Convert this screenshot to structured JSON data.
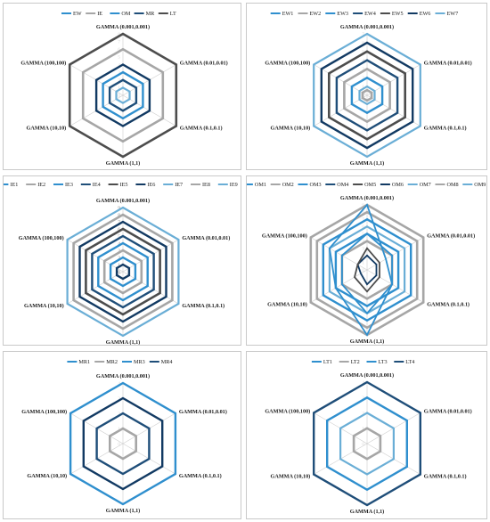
{
  "colors": {
    "blue": "#2f8fce",
    "gray": "#a6a6a6",
    "darkblue": "#1f4e79",
    "navy": "#123a63",
    "charcoal": "#4d4d4d",
    "lightblue": "#6aaed6",
    "axis": "#cfcfcf"
  },
  "chart_data": [
    {
      "id": "ew-group",
      "type": "radar",
      "categories": [
        "GAMMA (0.001,0.001)",
        "GAMMA (0.01,0.01)",
        "GAMMA (0.1,0.1)",
        "GAMMA (1,1)",
        "GAMMA (10,10)",
        "GAMMA (100,100)"
      ],
      "axis_ticks": [
        "8",
        "7",
        "6",
        "5",
        "4",
        "3",
        "2",
        "1",
        "0"
      ],
      "rmax": 8,
      "tick_labels_visible": false,
      "series": [
        {
          "name": "EW",
          "color": "blue",
          "values": [
            1,
            1,
            1,
            1,
            1,
            1
          ]
        },
        {
          "name": "IE",
          "color": "gray",
          "values": [
            6,
            6,
            6,
            6,
            6,
            6
          ]
        },
        {
          "name": "OM",
          "color": "blue",
          "values": [
            3,
            3,
            3,
            3,
            3,
            3
          ]
        },
        {
          "name": "MR",
          "color": "darkblue",
          "values": [
            2,
            2,
            2,
            2,
            2,
            2
          ]
        },
        {
          "name": "LT",
          "color": "charcoal",
          "values": [
            8,
            8,
            8,
            8,
            8,
            8
          ]
        }
      ],
      "rings": [
        {
          "v": 1,
          "color": "lightblue"
        },
        {
          "v": 2,
          "color": "darkblue"
        },
        {
          "v": 3,
          "color": "blue"
        },
        {
          "v": 4,
          "color": "navy"
        },
        {
          "v": 6,
          "color": "gray"
        },
        {
          "v": 8,
          "color": "charcoal"
        }
      ]
    },
    {
      "id": "ew-detail",
      "type": "radar",
      "categories": [
        "GAMMA (0.001,0.001)",
        "GAMMA (0.01,0.01)",
        "GAMMA (0.1,0.1)",
        "GAMMA (1,1)",
        "GAMMA (10,10)",
        "GAMMA (100,100)"
      ],
      "axis_ticks": [
        "7",
        "6",
        "5",
        "4",
        "3",
        "2",
        "1",
        "0"
      ],
      "rmax": 7,
      "tick_labels_visible": false,
      "series": [
        {
          "name": "EW1",
          "color": "blue",
          "values": [
            1,
            1,
            1,
            1,
            1,
            1
          ]
        },
        {
          "name": "EW2",
          "color": "gray",
          "values": [
            2,
            2,
            2,
            2,
            2,
            2
          ]
        },
        {
          "name": "EW3",
          "color": "blue",
          "values": [
            3,
            3,
            3,
            3,
            3,
            3
          ]
        },
        {
          "name": "EW4",
          "color": "darkblue",
          "values": [
            4,
            4,
            4,
            4,
            4,
            4
          ]
        },
        {
          "name": "EW5",
          "color": "charcoal",
          "values": [
            5,
            5,
            5,
            5,
            5,
            5
          ]
        },
        {
          "name": "EW6",
          "color": "navy",
          "values": [
            6,
            6,
            6,
            6,
            6,
            6
          ]
        },
        {
          "name": "EW7",
          "color": "lightblue",
          "values": [
            7,
            7,
            7,
            7,
            7,
            7
          ]
        }
      ],
      "rings": [
        {
          "v": 0.6,
          "color": "gray"
        },
        {
          "v": 1,
          "color": "lightblue"
        },
        {
          "v": 2,
          "color": "blue"
        },
        {
          "v": 3,
          "color": "gray"
        },
        {
          "v": 4,
          "color": "darkblue"
        },
        {
          "v": 5,
          "color": "charcoal"
        },
        {
          "v": 6,
          "color": "navy"
        },
        {
          "v": 7,
          "color": "lightblue"
        }
      ]
    },
    {
      "id": "ie-detail",
      "type": "radar",
      "categories": [
        "GAMMA (0.001,0.001)",
        "GAMMA (0.01,0.01)",
        "GAMMA (0.1,0.1)",
        "GAMMA (1,1)",
        "GAMMA (10,10)",
        "GAMMA (100,100)"
      ],
      "axis_ticks": [
        "9",
        "8",
        "7",
        "6",
        "5",
        "4",
        "3",
        "2",
        "1",
        "0"
      ],
      "rmax": 9,
      "tick_labels_visible": true,
      "series": [
        {
          "name": "IE1",
          "color": "blue",
          "values": [
            1,
            1,
            1,
            1,
            1,
            1
          ]
        },
        {
          "name": "IE2",
          "color": "gray",
          "values": [
            2,
            2,
            2,
            2,
            2,
            2
          ]
        },
        {
          "name": "IE3",
          "color": "blue",
          "values": [
            3,
            3,
            3,
            3,
            3,
            3
          ]
        },
        {
          "name": "IE4",
          "color": "darkblue",
          "values": [
            4,
            4,
            4,
            4,
            4,
            4
          ]
        },
        {
          "name": "IE5",
          "color": "charcoal",
          "values": [
            5,
            5,
            5,
            5,
            5,
            5
          ]
        },
        {
          "name": "IE6",
          "color": "navy",
          "values": [
            6,
            6,
            6,
            6,
            6,
            6
          ]
        },
        {
          "name": "IE7",
          "color": "lightblue",
          "values": [
            7,
            7,
            7,
            7,
            7,
            7
          ]
        },
        {
          "name": "IE8",
          "color": "gray",
          "values": [
            8,
            8,
            8,
            8,
            8,
            8
          ]
        },
        {
          "name": "IE9",
          "color": "lightblue",
          "values": [
            9,
            9,
            9,
            9,
            9,
            9
          ]
        }
      ],
      "rings": [
        {
          "v": 1,
          "color": "navy"
        },
        {
          "v": 2,
          "color": "blue"
        },
        {
          "v": 3,
          "color": "gray"
        },
        {
          "v": 4,
          "color": "blue"
        },
        {
          "v": 5,
          "color": "darkblue"
        },
        {
          "v": 6,
          "color": "charcoal"
        },
        {
          "v": 7,
          "color": "navy"
        },
        {
          "v": 8,
          "color": "gray"
        },
        {
          "v": 9,
          "color": "lightblue"
        }
      ]
    },
    {
      "id": "om-detail",
      "type": "radar",
      "categories": [
        "GAMMA (0.001,0.001)",
        "GAMMA (0.01,0.01)",
        "GAMMA (0.1,0.1)",
        "GAMMA (1,1)",
        "GAMMA (10,10)",
        "GAMMA (100,100)"
      ],
      "axis_ticks": [
        "9",
        "8",
        "7",
        "6",
        "5",
        "4",
        "3",
        "2",
        "1",
        "0"
      ],
      "rmax": 9,
      "tick_labels_visible": false,
      "series": [
        {
          "name": "OM1",
          "color": "blue",
          "values": [
            1,
            1,
            1,
            1,
            1,
            1
          ]
        },
        {
          "name": "OM2",
          "color": "gray",
          "values": [
            2,
            2,
            2,
            2,
            2,
            2
          ]
        },
        {
          "name": "OM3",
          "color": "blue",
          "values": [
            3,
            3,
            3,
            3,
            3,
            3
          ]
        },
        {
          "name": "OM4",
          "color": "darkblue",
          "values": [
            4,
            4,
            4,
            4,
            4,
            4
          ]
        },
        {
          "name": "OM5",
          "color": "charcoal",
          "values": [
            5,
            5,
            5,
            5,
            5,
            5
          ]
        },
        {
          "name": "OM6",
          "color": "navy",
          "values": [
            6,
            6,
            6,
            6,
            6,
            6
          ]
        },
        {
          "name": "OM7",
          "color": "lightblue",
          "values": [
            7,
            7,
            7,
            7,
            7,
            7
          ]
        },
        {
          "name": "OM8",
          "color": "gray",
          "values": [
            8,
            8,
            8,
            8,
            8,
            8
          ]
        },
        {
          "name": "OM9",
          "color": "lightblue",
          "values": [
            9,
            9,
            9,
            9,
            9,
            9
          ]
        }
      ],
      "rings": [
        {
          "v": 4,
          "color": "gray"
        },
        {
          "v": 5,
          "color": "blue"
        },
        {
          "v": 6,
          "color": "lightblue"
        },
        {
          "v": 7,
          "color": "blue"
        },
        {
          "v": 8,
          "color": "gray"
        },
        {
          "v": 9,
          "color": "gray"
        }
      ],
      "irregular": [
        {
          "color": "navy",
          "values": [
            2,
            1.5,
            1.5,
            2,
            1,
            1.5
          ]
        },
        {
          "color": "charcoal",
          "values": [
            3,
            2,
            2,
            3,
            2,
            1.5
          ]
        },
        {
          "color": "blue",
          "values": [
            5,
            4,
            4,
            6,
            4,
            4
          ]
        },
        {
          "color": "blue",
          "values": [
            9,
            3,
            4,
            9,
            5,
            6
          ]
        }
      ]
    },
    {
      "id": "mr-detail",
      "type": "radar",
      "categories": [
        "GAMMA (0.001,0.001)",
        "GAMMA (0.01,0.01)",
        "GAMMA (0.1,0.1)",
        "GAMMA (1,1)",
        "GAMMA (10,10)",
        "GAMMA (100,100)"
      ],
      "axis_ticks": [
        "4",
        "3",
        "2",
        "1",
        "0"
      ],
      "rmax": 4,
      "tick_labels_visible": false,
      "series": [
        {
          "name": "MR1",
          "color": "blue",
          "values": [
            1,
            1,
            1,
            1,
            1,
            1
          ]
        },
        {
          "name": "MR2",
          "color": "gray",
          "values": [
            2,
            2,
            2,
            2,
            2,
            2
          ]
        },
        {
          "name": "MR3",
          "color": "blue",
          "values": [
            3,
            3,
            3,
            3,
            3,
            3
          ]
        },
        {
          "name": "MR4",
          "color": "darkblue",
          "values": [
            4,
            4,
            4,
            4,
            4,
            4
          ]
        }
      ],
      "rings": [
        {
          "v": 1,
          "color": "gray"
        },
        {
          "v": 2,
          "color": "darkblue"
        },
        {
          "v": 3,
          "color": "navy"
        },
        {
          "v": 4,
          "color": "blue"
        }
      ]
    },
    {
      "id": "lt-detail",
      "type": "radar",
      "categories": [
        "GAMMA (0.001,0.001)",
        "GAMMA (0.01,0.01)",
        "GAMMA (0.1,0.1)",
        "GAMMA (1,1)",
        "GAMMA (10,10)",
        "GAMMA (100,100)"
      ],
      "axis_ticks": [
        "4",
        "3",
        "2",
        "1",
        "0"
      ],
      "rmax": 4,
      "tick_labels_visible": false,
      "series": [
        {
          "name": "LT1",
          "color": "blue",
          "values": [
            1,
            1,
            1,
            1,
            1,
            1
          ]
        },
        {
          "name": "LT2",
          "color": "gray",
          "values": [
            2,
            2,
            2,
            2,
            2,
            2
          ]
        },
        {
          "name": "LT3",
          "color": "blue",
          "values": [
            3,
            3,
            3,
            3,
            3,
            3
          ]
        },
        {
          "name": "LT4",
          "color": "darkblue",
          "values": [
            4,
            4,
            4,
            4,
            4,
            4
          ]
        }
      ],
      "rings": [
        {
          "v": 1,
          "color": "gray"
        },
        {
          "v": 2,
          "color": "lightblue"
        },
        {
          "v": 3,
          "color": "blue"
        },
        {
          "v": 4,
          "color": "darkblue"
        }
      ]
    }
  ]
}
